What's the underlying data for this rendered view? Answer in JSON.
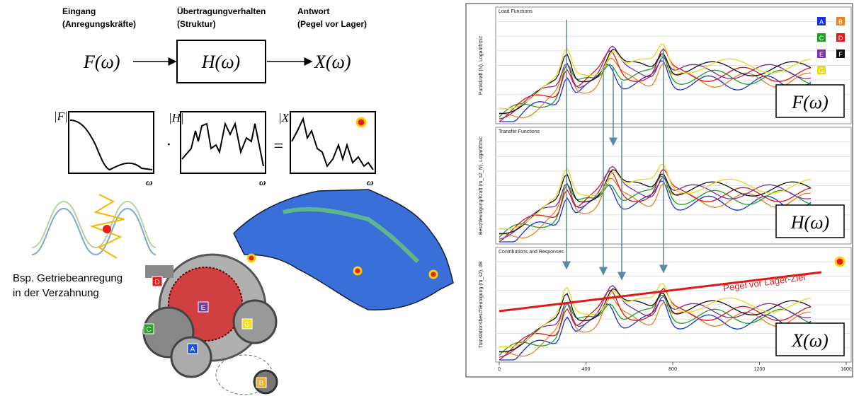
{
  "header": {
    "input": "Eingang",
    "input_sub": "(Anregungskräfte)",
    "transfer": "Übertragungverhalten",
    "transfer_sub": "(Struktur)",
    "output": "Antwort",
    "output_sub": "(Pegel vor Lager)"
  },
  "block_diagram": {
    "input": "F(ω)",
    "transfer": "H(ω)",
    "output": "X(ω)"
  },
  "spectra": {
    "f_label": "|F|",
    "h_label": "|H|",
    "x_label": "|X|",
    "dot": "·",
    "equals": "=",
    "omega_1": "ω",
    "omega_2": "ω",
    "omega_3": "ω"
  },
  "example": {
    "line1": "Bsp. Getriebeanregung",
    "line2": "in der Verzahnung",
    "gear_labels": [
      "A",
      "B",
      "C",
      "D",
      "E",
      "G"
    ]
  },
  "right_chart": {
    "panels": [
      {
        "title": "Load Functions",
        "y_label": "Punktkraft (N), Logarithmic",
        "formula": "F(ω)"
      },
      {
        "title": "Transfer Functions",
        "y_label": "Beschleunigung/Kraft (m_s2_N), Logarithmic",
        "formula": "H(ω)"
      },
      {
        "title": "Contributions and Responses",
        "y_label": "Translationsbeschleunigung (m_s2), dB",
        "formula": "X(ω)"
      }
    ],
    "target_label": "Pegel vor Lager-Ziel",
    "legend": [
      "A",
      "B",
      "C",
      "D",
      "E",
      "F",
      "G"
    ],
    "x_ticks": [
      "0",
      "400",
      "800",
      "1200",
      "1600"
    ]
  }
}
